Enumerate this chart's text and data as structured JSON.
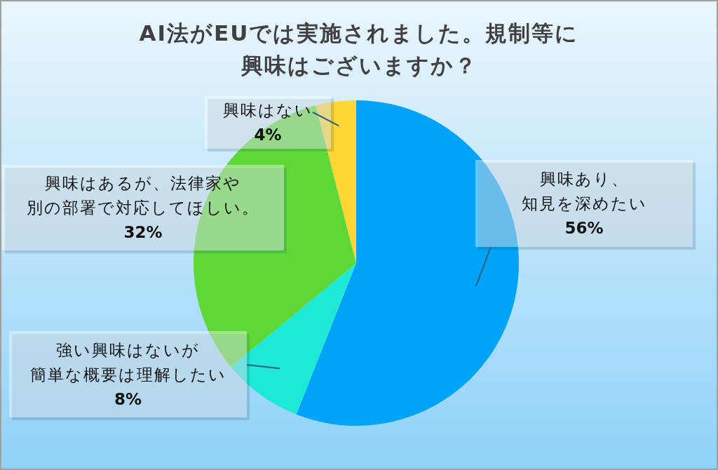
{
  "chart_data": {
    "type": "pie",
    "title": "AI法がEUでは実施されました。規制等に興味はございますか？",
    "categories": [
      "興味あり、知見を深めたい",
      "強い興味はないが簡単な概要は理解したい",
      "興味はあるが、法律家や別の部署で対応してほしい。",
      "興味はない"
    ],
    "values": [
      56,
      8,
      32,
      4
    ],
    "value_labels": [
      "56%",
      "8%",
      "32%",
      "4%"
    ],
    "colors": [
      "#00a3f7",
      "#1de9d6",
      "#5fd837",
      "#ffd633"
    ]
  }
}
